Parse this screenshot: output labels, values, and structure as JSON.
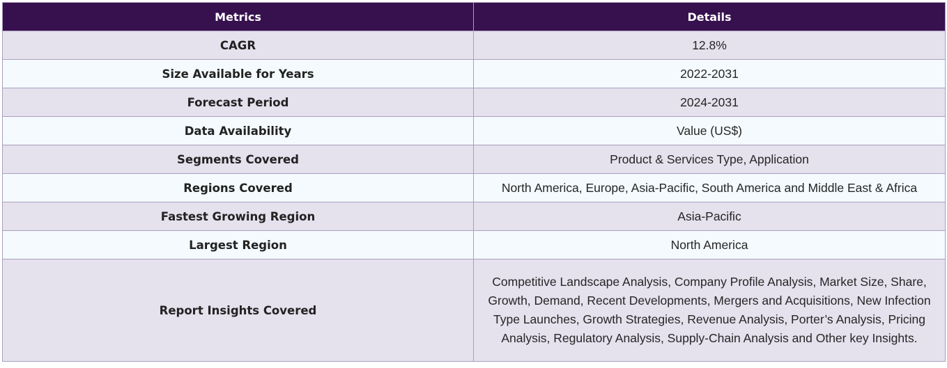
{
  "table": {
    "headers": [
      "Metrics",
      "Details"
    ],
    "rows": [
      {
        "metric": "CAGR",
        "detail": "12.8%"
      },
      {
        "metric": "Size Available for Years",
        "detail": "2022-2031"
      },
      {
        "metric": "Forecast Period",
        "detail": "2024-2031"
      },
      {
        "metric": "Data Availability",
        "detail": "Value (US$)"
      },
      {
        "metric": "Segments Covered",
        "detail": "Product & Services Type, Application"
      },
      {
        "metric": "Regions Covered",
        "detail": "North America, Europe, Asia-Pacific, South America and Middle East & Africa"
      },
      {
        "metric": "Fastest Growing Region",
        "detail": "Asia-Pacific"
      },
      {
        "metric": "Largest Region",
        "detail": "North America"
      },
      {
        "metric": "Report Insights Covered",
        "detail": "Competitive Landscape Analysis, Company Profile Analysis, Market Size, Share, Growth, Demand, Recent Developments, Mergers and Acquisitions, New Infection Type Launches, Growth Strategies, Revenue Analysis, Porter’s Analysis, Pricing Analysis, Regulatory Analysis, Supply-Chain Analysis and Other key Insights."
      }
    ]
  },
  "colors": {
    "header_bg": "#37114e",
    "header_text": "#ffffff",
    "row_odd_bg": "#e5e1ed",
    "row_even_bg": "#f4fafd",
    "border": "#a99fbf"
  }
}
